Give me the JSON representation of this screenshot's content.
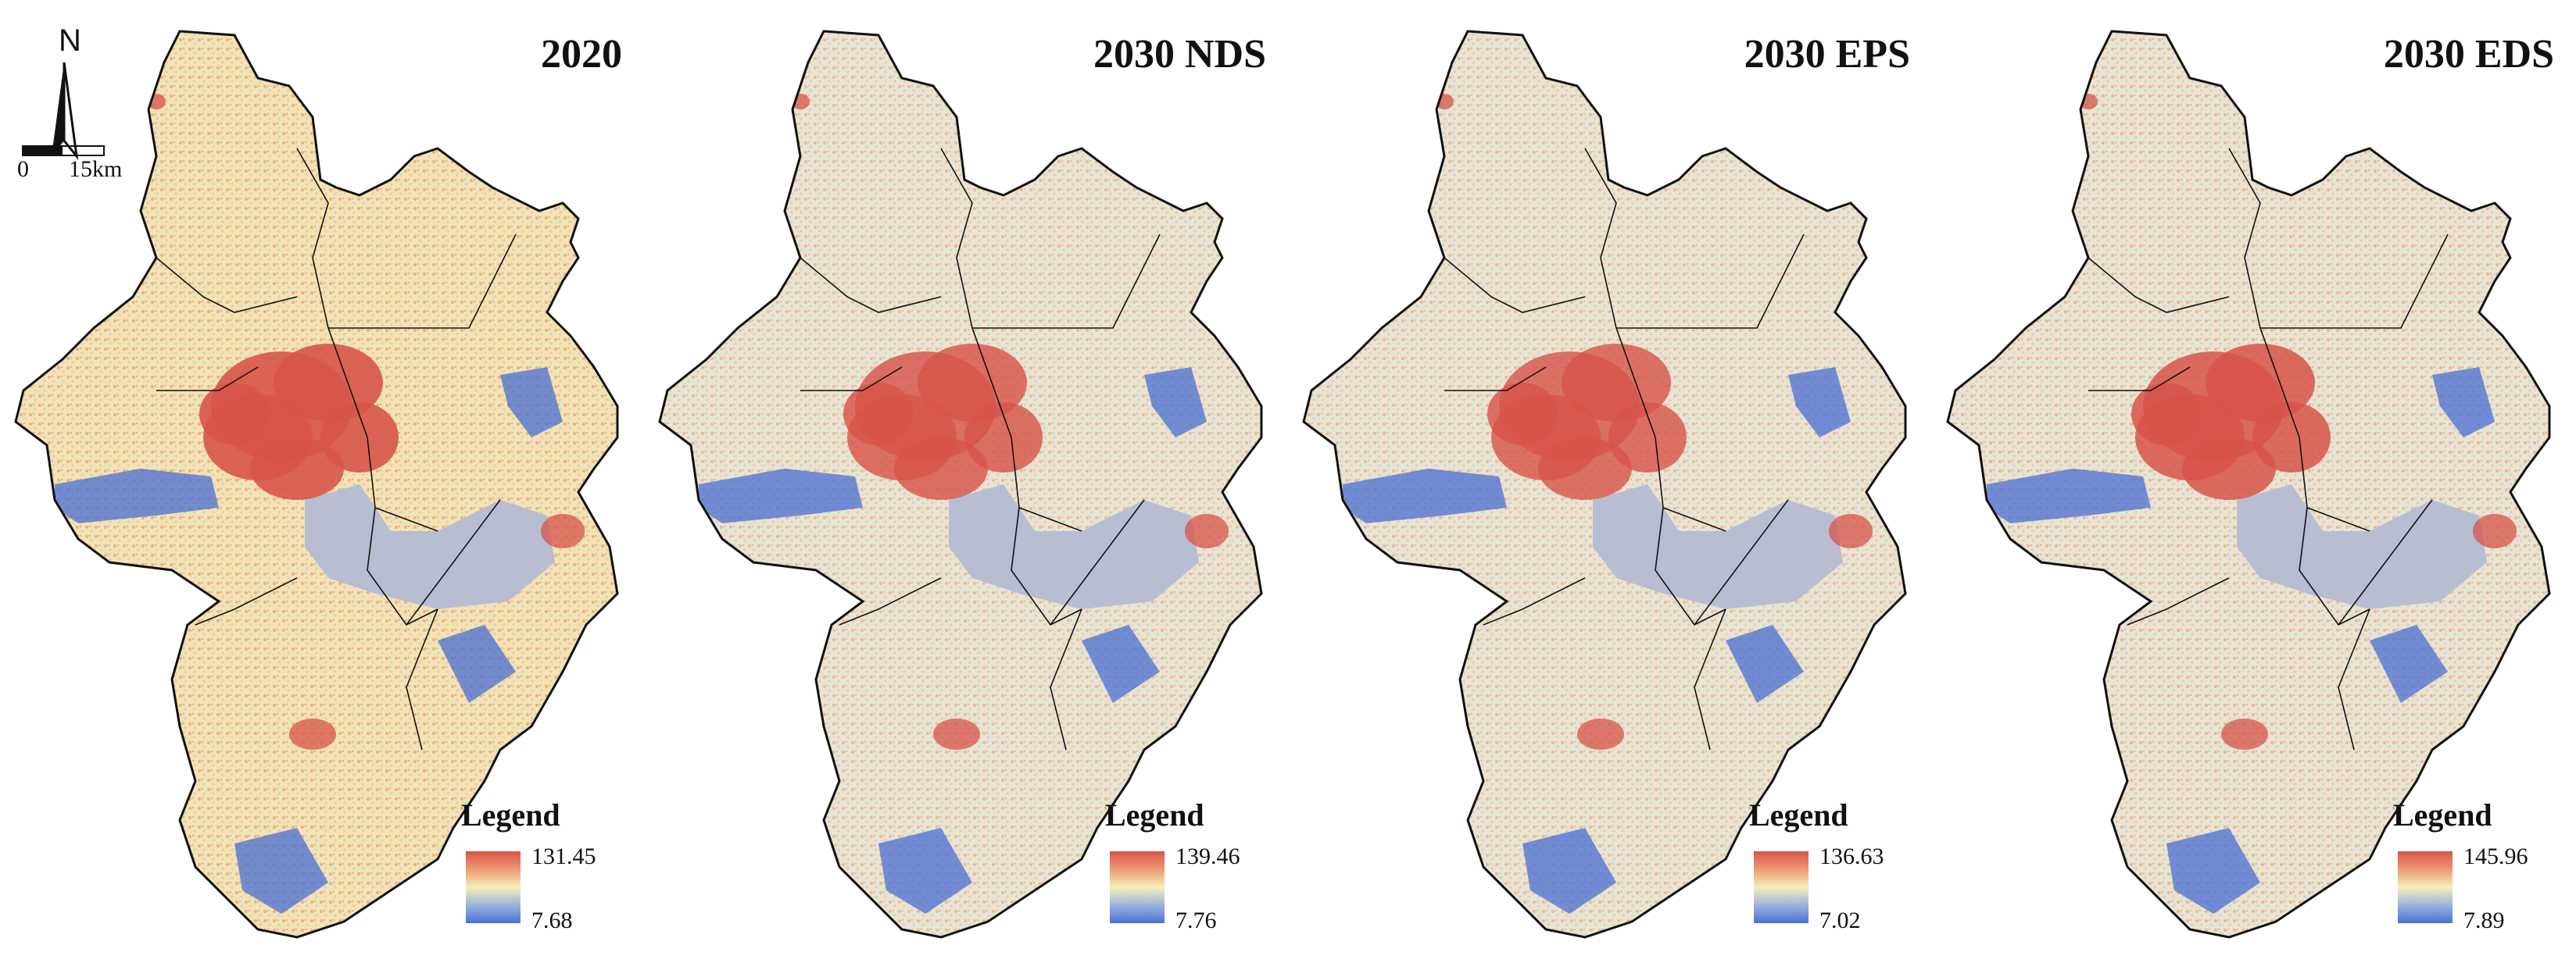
{
  "map": {
    "compass_label": "N",
    "scale_start": "0",
    "scale_end": "15km",
    "colors": {
      "high": "#d7544a",
      "mid": "#f6efb9",
      "low": "#4a6fd4",
      "water": "#b9bdd2",
      "boundary": "#111111"
    },
    "panels": [
      {
        "title": "2020",
        "legend_title": "Legend",
        "legend_max": "131.45",
        "legend_min": "7.68",
        "urban_intensity": 1.0
      },
      {
        "title": "2030 NDS",
        "legend_title": "Legend",
        "legend_max": "139.46",
        "legend_min": "7.76",
        "urban_intensity": 0.75
      },
      {
        "title": "2030 EPS",
        "legend_title": "Legend",
        "legend_max": "136.63",
        "legend_min": "7.02",
        "urban_intensity": 0.72
      },
      {
        "title": "2030 EDS",
        "legend_title": "Legend",
        "legend_max": "145.96",
        "legend_min": "7.89",
        "urban_intensity": 0.85
      }
    ]
  }
}
